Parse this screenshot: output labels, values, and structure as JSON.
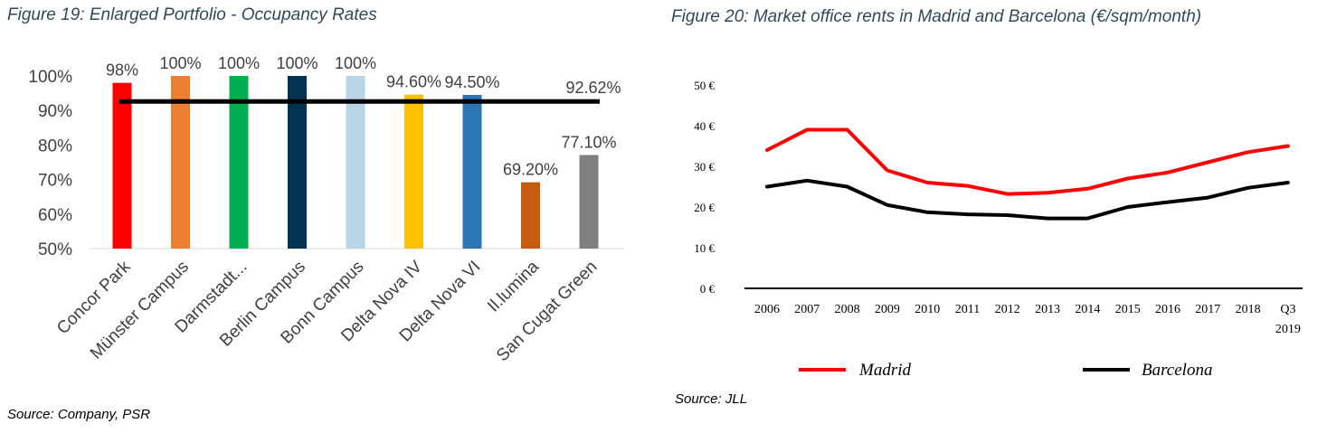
{
  "figures": {
    "fig19_caption": "Figure 19: Enlarged Portfolio - Occupancy Rates",
    "fig19_source": "Source: Company, PSR",
    "fig20_caption": "Figure 20: Market office rents in Madrid and Barcelona (€/sqm/month)",
    "fig20_source": "Source: JLL"
  },
  "chart_data": [
    {
      "type": "bar",
      "categories": [
        "Concor Park",
        "Münster Campus",
        "Darmstadt...",
        "Berlin Campus",
        "Bonn Campus",
        "Delta Nova IV",
        "Delta Nova VI",
        "Il.lumina",
        "San Cugat Green"
      ],
      "values": [
        98,
        100,
        100,
        100,
        100,
        94.6,
        94.5,
        69.2,
        77.1
      ],
      "data_labels": [
        "98%",
        "100%",
        "100%",
        "100%",
        "100%",
        "94.60%",
        "94.50%",
        "69.20%",
        "77.10%"
      ],
      "colors": [
        "#ff0000",
        "#ed7d31",
        "#00b050",
        "#003350",
        "#b8d4e6",
        "#ffc000",
        "#2e75b6",
        "#c55a11",
        "#808080"
      ],
      "ylim": [
        50,
        100
      ],
      "yticks": [
        "50%",
        "60%",
        "70%",
        "80%",
        "90%",
        "100%"
      ],
      "average_line": {
        "value": 92.62,
        "label": "92.62%",
        "color": "#000000"
      },
      "grid": false
    },
    {
      "type": "line",
      "x": [
        "2006",
        "2007",
        "2008",
        "2009",
        "2010",
        "2011",
        "2012",
        "2013",
        "2014",
        "2015",
        "2016",
        "2017",
        "2018",
        "Q3 2019"
      ],
      "x_tick_labels": [
        [
          "2006"
        ],
        [
          "2007"
        ],
        [
          "2008"
        ],
        [
          "2009"
        ],
        [
          "2010"
        ],
        [
          "2011"
        ],
        [
          "2012"
        ],
        [
          "2013"
        ],
        [
          "2014"
        ],
        [
          "2015"
        ],
        [
          "2016"
        ],
        [
          "2017"
        ],
        [
          "2018"
        ],
        [
          "Q3",
          "2019"
        ]
      ],
      "series": [
        {
          "name": "Madrid",
          "color": "#ff0000",
          "values": [
            34,
            39,
            39,
            29,
            26,
            25.2,
            23.2,
            23.5,
            24.5,
            27,
            28.5,
            31,
            33.5,
            35
          ]
        },
        {
          "name": "Barcelona",
          "color": "#000000",
          "values": [
            25,
            26.5,
            25,
            20.5,
            18.7,
            18.2,
            18,
            17.2,
            17.2,
            20,
            21.2,
            22.3,
            24.7,
            26
          ]
        }
      ],
      "ylim": [
        0,
        50
      ],
      "yticks": [
        "0 €",
        "10 €",
        "20 €",
        "30 €",
        "40 €",
        "50 €"
      ],
      "grid": false,
      "legend_position": "bottom"
    }
  ]
}
